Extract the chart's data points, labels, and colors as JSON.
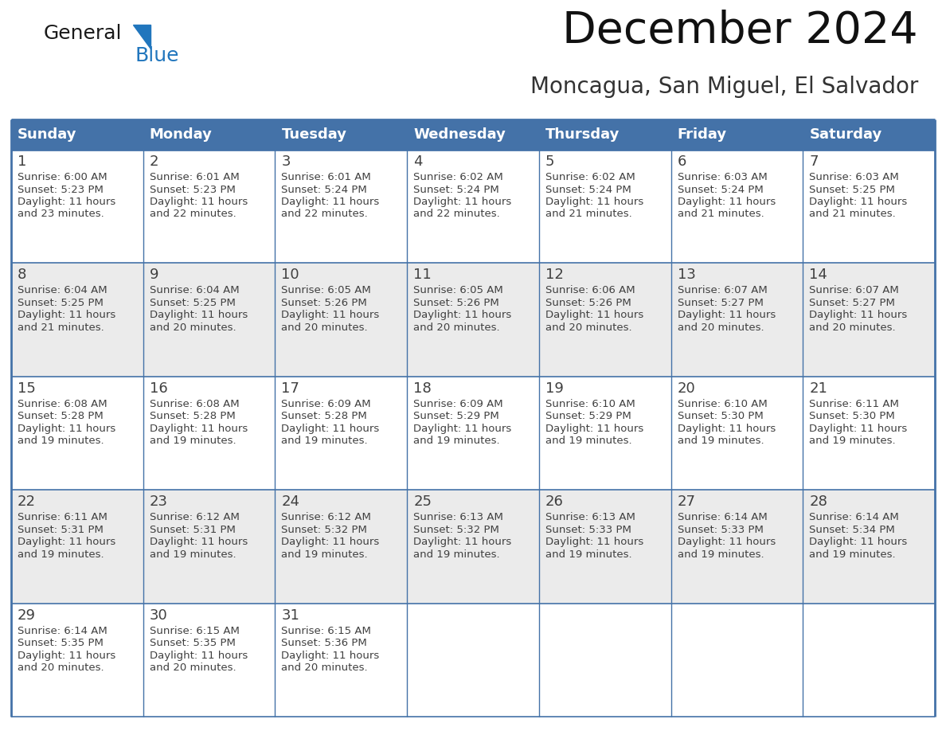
{
  "title": "December 2024",
  "subtitle": "Moncagua, San Miguel, El Salvador",
  "header_color": "#4472a8",
  "header_text_color": "#ffffff",
  "day_names": [
    "Sunday",
    "Monday",
    "Tuesday",
    "Wednesday",
    "Thursday",
    "Friday",
    "Saturday"
  ],
  "bg_color": "#ffffff",
  "cell_bg_even": "#ebebeb",
  "cell_bg_odd": "#ffffff",
  "grid_color": "#4472a8",
  "text_color": "#404040",
  "logo_general_color": "#1a1a1a",
  "logo_blue_color": "#2176bd",
  "title_fontsize": 40,
  "subtitle_fontsize": 20,
  "day_num_fontsize": 13,
  "cell_text_fontsize": 9.5,
  "header_fontsize": 13,
  "days": [
    {
      "day": 1,
      "col": 0,
      "row": 0,
      "sunrise": "6:00 AM",
      "sunset": "5:23 PM",
      "daylight_hours": 11,
      "daylight_min": 23
    },
    {
      "day": 2,
      "col": 1,
      "row": 0,
      "sunrise": "6:01 AM",
      "sunset": "5:23 PM",
      "daylight_hours": 11,
      "daylight_min": 22
    },
    {
      "day": 3,
      "col": 2,
      "row": 0,
      "sunrise": "6:01 AM",
      "sunset": "5:24 PM",
      "daylight_hours": 11,
      "daylight_min": 22
    },
    {
      "day": 4,
      "col": 3,
      "row": 0,
      "sunrise": "6:02 AM",
      "sunset": "5:24 PM",
      "daylight_hours": 11,
      "daylight_min": 22
    },
    {
      "day": 5,
      "col": 4,
      "row": 0,
      "sunrise": "6:02 AM",
      "sunset": "5:24 PM",
      "daylight_hours": 11,
      "daylight_min": 21
    },
    {
      "day": 6,
      "col": 5,
      "row": 0,
      "sunrise": "6:03 AM",
      "sunset": "5:24 PM",
      "daylight_hours": 11,
      "daylight_min": 21
    },
    {
      "day": 7,
      "col": 6,
      "row": 0,
      "sunrise": "6:03 AM",
      "sunset": "5:25 PM",
      "daylight_hours": 11,
      "daylight_min": 21
    },
    {
      "day": 8,
      "col": 0,
      "row": 1,
      "sunrise": "6:04 AM",
      "sunset": "5:25 PM",
      "daylight_hours": 11,
      "daylight_min": 21
    },
    {
      "day": 9,
      "col": 1,
      "row": 1,
      "sunrise": "6:04 AM",
      "sunset": "5:25 PM",
      "daylight_hours": 11,
      "daylight_min": 20
    },
    {
      "day": 10,
      "col": 2,
      "row": 1,
      "sunrise": "6:05 AM",
      "sunset": "5:26 PM",
      "daylight_hours": 11,
      "daylight_min": 20
    },
    {
      "day": 11,
      "col": 3,
      "row": 1,
      "sunrise": "6:05 AM",
      "sunset": "5:26 PM",
      "daylight_hours": 11,
      "daylight_min": 20
    },
    {
      "day": 12,
      "col": 4,
      "row": 1,
      "sunrise": "6:06 AM",
      "sunset": "5:26 PM",
      "daylight_hours": 11,
      "daylight_min": 20
    },
    {
      "day": 13,
      "col": 5,
      "row": 1,
      "sunrise": "6:07 AM",
      "sunset": "5:27 PM",
      "daylight_hours": 11,
      "daylight_min": 20
    },
    {
      "day": 14,
      "col": 6,
      "row": 1,
      "sunrise": "6:07 AM",
      "sunset": "5:27 PM",
      "daylight_hours": 11,
      "daylight_min": 20
    },
    {
      "day": 15,
      "col": 0,
      "row": 2,
      "sunrise": "6:08 AM",
      "sunset": "5:28 PM",
      "daylight_hours": 11,
      "daylight_min": 19
    },
    {
      "day": 16,
      "col": 1,
      "row": 2,
      "sunrise": "6:08 AM",
      "sunset": "5:28 PM",
      "daylight_hours": 11,
      "daylight_min": 19
    },
    {
      "day": 17,
      "col": 2,
      "row": 2,
      "sunrise": "6:09 AM",
      "sunset": "5:28 PM",
      "daylight_hours": 11,
      "daylight_min": 19
    },
    {
      "day": 18,
      "col": 3,
      "row": 2,
      "sunrise": "6:09 AM",
      "sunset": "5:29 PM",
      "daylight_hours": 11,
      "daylight_min": 19
    },
    {
      "day": 19,
      "col": 4,
      "row": 2,
      "sunrise": "6:10 AM",
      "sunset": "5:29 PM",
      "daylight_hours": 11,
      "daylight_min": 19
    },
    {
      "day": 20,
      "col": 5,
      "row": 2,
      "sunrise": "6:10 AM",
      "sunset": "5:30 PM",
      "daylight_hours": 11,
      "daylight_min": 19
    },
    {
      "day": 21,
      "col": 6,
      "row": 2,
      "sunrise": "6:11 AM",
      "sunset": "5:30 PM",
      "daylight_hours": 11,
      "daylight_min": 19
    },
    {
      "day": 22,
      "col": 0,
      "row": 3,
      "sunrise": "6:11 AM",
      "sunset": "5:31 PM",
      "daylight_hours": 11,
      "daylight_min": 19
    },
    {
      "day": 23,
      "col": 1,
      "row": 3,
      "sunrise": "6:12 AM",
      "sunset": "5:31 PM",
      "daylight_hours": 11,
      "daylight_min": 19
    },
    {
      "day": 24,
      "col": 2,
      "row": 3,
      "sunrise": "6:12 AM",
      "sunset": "5:32 PM",
      "daylight_hours": 11,
      "daylight_min": 19
    },
    {
      "day": 25,
      "col": 3,
      "row": 3,
      "sunrise": "6:13 AM",
      "sunset": "5:32 PM",
      "daylight_hours": 11,
      "daylight_min": 19
    },
    {
      "day": 26,
      "col": 4,
      "row": 3,
      "sunrise": "6:13 AM",
      "sunset": "5:33 PM",
      "daylight_hours": 11,
      "daylight_min": 19
    },
    {
      "day": 27,
      "col": 5,
      "row": 3,
      "sunrise": "6:14 AM",
      "sunset": "5:33 PM",
      "daylight_hours": 11,
      "daylight_min": 19
    },
    {
      "day": 28,
      "col": 6,
      "row": 3,
      "sunrise": "6:14 AM",
      "sunset": "5:34 PM",
      "daylight_hours": 11,
      "daylight_min": 19
    },
    {
      "day": 29,
      "col": 0,
      "row": 4,
      "sunrise": "6:14 AM",
      "sunset": "5:35 PM",
      "daylight_hours": 11,
      "daylight_min": 20
    },
    {
      "day": 30,
      "col": 1,
      "row": 4,
      "sunrise": "6:15 AM",
      "sunset": "5:35 PM",
      "daylight_hours": 11,
      "daylight_min": 20
    },
    {
      "day": 31,
      "col": 2,
      "row": 4,
      "sunrise": "6:15 AM",
      "sunset": "5:36 PM",
      "daylight_hours": 11,
      "daylight_min": 20
    }
  ]
}
